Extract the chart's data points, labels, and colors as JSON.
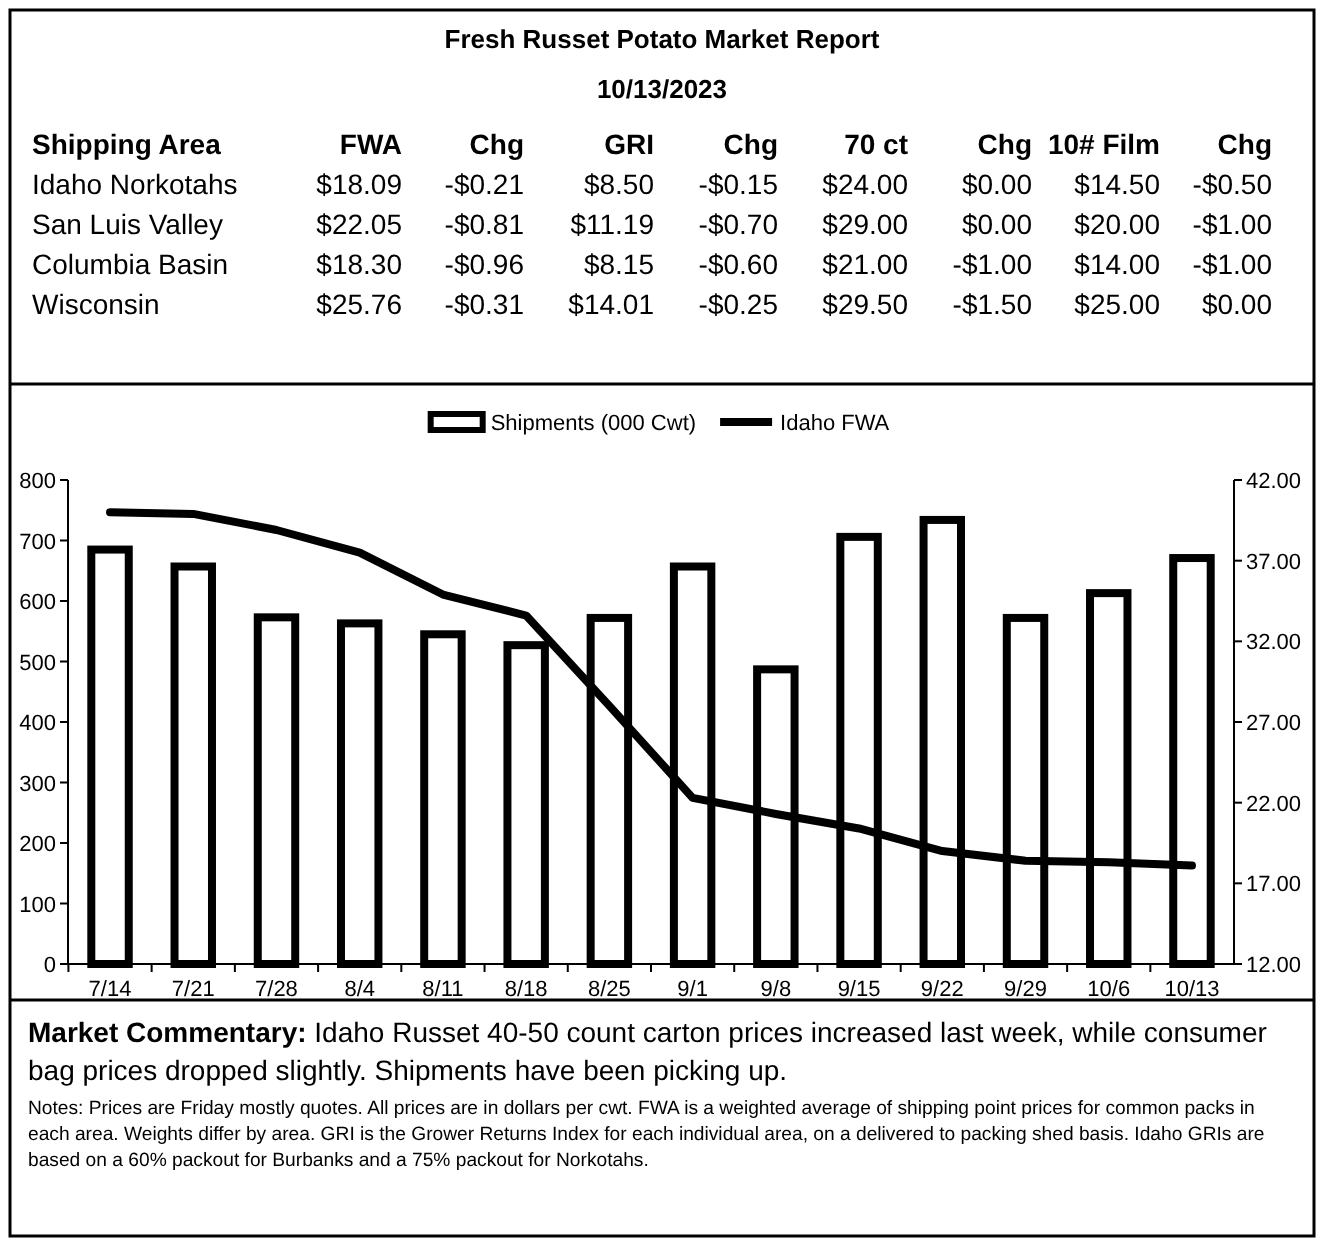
{
  "chart_data": [
    {
      "type": "other",
      "title": "Fresh Russet Potato Market Report",
      "subtitle": "10/13/2023",
      "categories": [
        "Shipping Area",
        "FWA",
        "Chg",
        "GRI",
        "Chg",
        "70 ct",
        "Chg",
        "10# Film",
        "Chg"
      ],
      "cell_labels": [
        [
          "Idaho Norkotahs",
          "$18.09",
          "-$0.21",
          "$8.50",
          "-$0.15",
          "$24.00",
          "$0.00",
          "$14.50",
          "-$0.50"
        ],
        [
          "San Luis Valley",
          "$22.05",
          "-$0.81",
          "$11.19",
          "-$0.70",
          "$29.00",
          "$0.00",
          "$20.00",
          "-$1.00"
        ],
        [
          "Columbia Basin",
          "$18.30",
          "-$0.96",
          "$8.15",
          "-$0.60",
          "$21.00",
          "-$1.00",
          "$14.00",
          "-$1.00"
        ],
        [
          "Wisconsin",
          "$25.76",
          "-$0.31",
          "$14.01",
          "-$0.25",
          "$29.50",
          "-$1.50",
          "$25.00",
          "$0.00"
        ]
      ]
    },
    {
      "type": "bar",
      "categories": [
        "7/14",
        "7/21",
        "7/28",
        "8/4",
        "8/11",
        "8/18",
        "8/25",
        "9/1",
        "9/8",
        "9/15",
        "9/22",
        "9/29",
        "10/6",
        "10/13"
      ],
      "series": [
        {
          "name": "Shipments (000 Cwt)",
          "type": "bar",
          "color": "#ffffff",
          "values": [
            685,
            657,
            573,
            563,
            545,
            527,
            572,
            657,
            487,
            706,
            734,
            572,
            613,
            671
          ]
        },
        {
          "name": "Idaho FWA",
          "type": "line",
          "axis": "y2",
          "color": "#000000",
          "values": [
            40.0,
            39.9,
            38.9,
            37.5,
            34.9,
            33.6,
            28.0,
            22.3,
            21.3,
            20.4,
            19.0,
            18.4,
            18.3,
            18.1
          ]
        }
      ],
      "ylim": [
        0,
        800
      ],
      "yticks": [
        0,
        100,
        200,
        300,
        400,
        500,
        600,
        700,
        800
      ],
      "y2lim": [
        12,
        42
      ],
      "y2ticks": [
        {
          "value": 12,
          "label": "12.00"
        },
        {
          "value": 17,
          "label": "17.00"
        },
        {
          "value": 22,
          "label": "22.00"
        },
        {
          "value": 27,
          "label": "27.00"
        },
        {
          "value": 32,
          "label": "32.00"
        },
        {
          "value": 37,
          "label": "37.00"
        },
        {
          "value": 42,
          "label": "42.00"
        }
      ],
      "legend": "top",
      "grid": false,
      "marker": "none",
      "line_style": "solid",
      "annotations": [
        "Market Commentary: Idaho Russet 40-50 count carton prices increased last week, while consumer bag prices dropped slightly. Shipments have been picking up.",
        "Notes: Prices are Friday mostly quotes. All prices are in dollars per cwt. FWA is a weighted average of shipping point prices for  common packs in each area. Weights differ by area. GRI is the Grower Returns Index for each individual area, on a delivered to packing shed basis. Idaho GRIs are based on a 60% packout for Burbanks and a 75% packout for Norkotahs."
      ]
    }
  ]
}
